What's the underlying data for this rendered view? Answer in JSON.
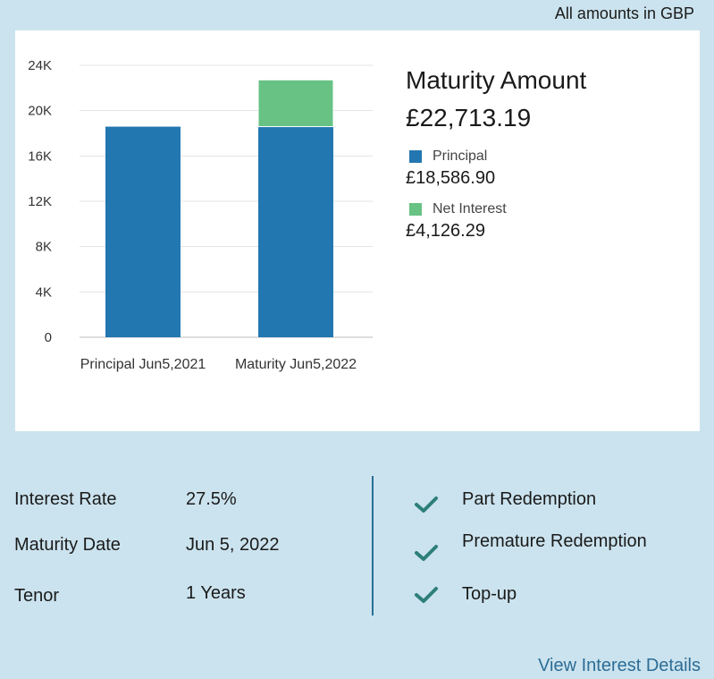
{
  "header": {
    "currency_note": "All amounts in GBP"
  },
  "summary": {
    "title": "Maturity Amount",
    "total": "£22,713.19",
    "legend": [
      {
        "label": "Principal",
        "value": "£18,586.90",
        "color": "#2377b0"
      },
      {
        "label": "Net Interest",
        "value": "£4,126.29",
        "color": "#67c284"
      }
    ]
  },
  "chart_data": {
    "type": "bar",
    "stacked": true,
    "categories": [
      "Principal Jun5,2021",
      "Maturity Jun5,2022"
    ],
    "series": [
      {
        "name": "Principal",
        "values": [
          18586.9,
          18586.9
        ],
        "color": "#2377b0"
      },
      {
        "name": "Net Interest",
        "values": [
          0,
          4126.29
        ],
        "color": "#67c284"
      }
    ],
    "yticks": [
      0,
      4000,
      8000,
      12000,
      16000,
      20000,
      24000
    ],
    "ytick_labels": [
      "0",
      "4K",
      "8K",
      "12K",
      "16K",
      "20K",
      "24K"
    ],
    "ylim": [
      0,
      24000
    ],
    "grid": true,
    "title": "",
    "xlabel": "",
    "ylabel": ""
  },
  "details": {
    "rows": [
      {
        "label": "Interest Rate",
        "value": "27.5%"
      },
      {
        "label": "Maturity Date",
        "value": "Jun 5, 2022"
      },
      {
        "label": "Tenor",
        "value": "1 Years"
      }
    ]
  },
  "features": {
    "items": [
      {
        "label": "Part Redemption",
        "icon": "check-icon"
      },
      {
        "label": "Premature Redemption",
        "icon": "check-icon"
      },
      {
        "label": "Top-up",
        "icon": "check-icon"
      }
    ],
    "check_color": "#2d7f7a"
  },
  "footer": {
    "link_label": "View Interest Details"
  }
}
